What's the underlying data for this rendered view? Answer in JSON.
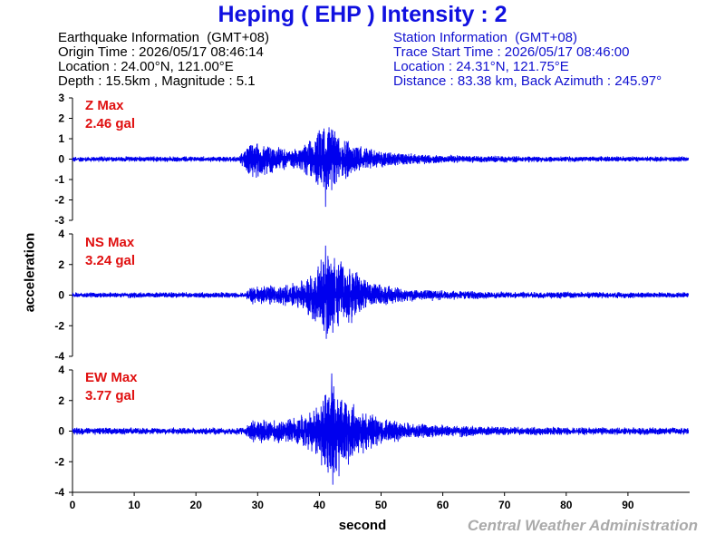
{
  "header": {
    "title": "Heping ( EHP ) Intensity : 2"
  },
  "earthquake_info": {
    "heading": "Earthquake Information  (GMT+08)",
    "origin_time": "Origin Time : 2026/05/17 08:46:14",
    "location": "Location : 24.00°N, 121.00°E",
    "depth_magnitude": "Depth : 15.5km , Magnitude : 5.1"
  },
  "station_info": {
    "heading": "Station Information  (GMT+08)",
    "trace_start": "Trace Start Time : 2026/05/17 08:46:00",
    "location": "Location : 24.31°N, 121.75°E",
    "distance": "Distance : 83.38 km, Back Azimuth : 245.97°"
  },
  "footer": {
    "credit": "Central Weather Administration"
  },
  "colors": {
    "trace": "#0000ee",
    "title": "#1010e0",
    "max_label": "#e01010",
    "credit": "#aaaaaa"
  },
  "chart_data": [
    {
      "type": "line",
      "component": "Z",
      "max_label": "Z Max",
      "max_value": "2.46 gal",
      "ylim": [
        -3,
        3
      ],
      "yticks": [
        -3,
        -2,
        -1,
        0,
        1,
        2,
        3
      ],
      "xlim": [
        0,
        100
      ],
      "envelope": {
        "t": [
          0,
          27,
          28,
          29,
          31,
          33,
          35,
          37,
          39,
          40,
          41,
          42,
          43,
          44,
          46,
          48,
          50,
          55,
          60,
          70,
          80,
          100
        ],
        "amp": [
          0.15,
          0.15,
          0.6,
          1.1,
          0.9,
          0.7,
          0.5,
          0.6,
          1.2,
          1.6,
          2.46,
          2.0,
          1.5,
          1.1,
          0.8,
          0.6,
          0.45,
          0.3,
          0.22,
          0.18,
          0.15,
          0.15
        ]
      }
    },
    {
      "type": "line",
      "component": "NS",
      "max_label": "NS Max",
      "max_value": "3.24 gal",
      "ylim": [
        -4,
        4
      ],
      "yticks": [
        -4,
        -2,
        0,
        2,
        4
      ],
      "xlim": [
        0,
        100
      ],
      "envelope": {
        "t": [
          0,
          28,
          29,
          31,
          33,
          35,
          37,
          38,
          40,
          41,
          42,
          43,
          44,
          46,
          48,
          50,
          52,
          55,
          60,
          70,
          100
        ],
        "amp": [
          0.2,
          0.2,
          0.6,
          0.7,
          0.7,
          0.8,
          1.0,
          1.3,
          2.2,
          3.24,
          3.0,
          2.6,
          2.2,
          1.8,
          1.2,
          0.8,
          0.6,
          0.45,
          0.35,
          0.25,
          0.2
        ]
      }
    },
    {
      "type": "line",
      "component": "EW",
      "max_label": "EW Max",
      "max_value": "3.77 gal",
      "ylim": [
        -4,
        4
      ],
      "yticks": [
        -4,
        -2,
        0,
        2,
        4
      ],
      "xlim": [
        0,
        100
      ],
      "envelope": {
        "t": [
          0,
          28,
          29,
          31,
          33,
          35,
          37,
          39,
          40,
          41,
          42,
          43,
          44,
          46,
          48,
          50,
          52,
          55,
          60,
          70,
          100
        ],
        "amp": [
          0.25,
          0.25,
          0.8,
          0.9,
          0.8,
          0.9,
          1.2,
          1.6,
          2.2,
          3.0,
          3.77,
          3.2,
          2.6,
          1.9,
          1.4,
          1.0,
          0.8,
          0.6,
          0.45,
          0.3,
          0.25
        ]
      }
    }
  ],
  "x_axis": {
    "label": "second",
    "ticks": [
      0,
      10,
      20,
      30,
      40,
      50,
      60,
      70,
      80,
      90
    ]
  },
  "y_axis": {
    "label": "acceleration"
  }
}
